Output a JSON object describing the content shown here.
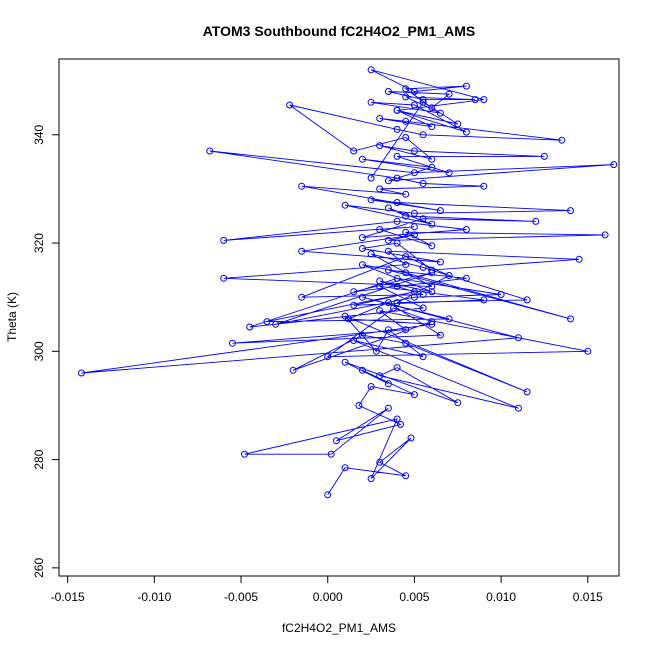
{
  "chart_data": {
    "type": "line",
    "title": "ATOM3 Southbound fC2H4O2_PM1_AMS",
    "xlabel": "fC2H4O2_PM1_AMS",
    "ylabel": "Theta (K)",
    "xlim": [
      -0.0155,
      0.0168
    ],
    "ylim": [
      258.5,
      354
    ],
    "x_ticks": [
      -0.015,
      -0.01,
      -0.005,
      0.0,
      0.005,
      0.01,
      0.015
    ],
    "x_tick_labels": [
      "-0.015",
      "-0.010",
      "-0.005",
      "0.000",
      "0.005",
      "0.010",
      "0.015"
    ],
    "y_ticks": [
      260,
      280,
      300,
      320,
      340
    ],
    "y_tick_labels": [
      "260",
      "280",
      "300",
      "320",
      "340"
    ],
    "grid": false,
    "legend": "none",
    "series_color": "#0000ff",
    "marker": "open-circle",
    "series": [
      {
        "x": [
          0.0,
          0.001,
          0.0045,
          0.003,
          0.0048,
          0.0025,
          0.004,
          -0.0048,
          0.0002,
          0.0035,
          0.0005,
          0.0042,
          0.0018,
          0.0025,
          0.005,
          0.002,
          0.0035,
          0.001,
          0.0075,
          0.004,
          0.003,
          0.011,
          0.0015,
          0.0055,
          0.0035,
          0.0028,
          0.001,
          0.0115,
          0.0045,
          0.002,
          -0.002,
          0.006,
          0.0038,
          0.0,
          0.015,
          0.003,
          0.0045,
          -0.0055,
          0.0065,
          0.0035,
          0.0012,
          0.006,
          -0.0142,
          0.011,
          0.002,
          0.007,
          -0.0035,
          0.005,
          0.0015,
          0.009,
          0.003,
          0.0055,
          -0.0045,
          0.004,
          0.01,
          0.005,
          -0.003,
          0.006,
          0.0015,
          0.004,
          0.008,
          0.0035,
          0.014,
          0.0045,
          0.002,
          0.006,
          0.003,
          0.0055,
          -0.0015,
          0.0045,
          0.007,
          0.004,
          0.0115,
          0.0055,
          0.0025,
          0.006,
          -0.006,
          0.0045,
          0.0035,
          0.0145,
          0.006,
          0.004,
          0.002,
          0.0065,
          -0.0015,
          0.005,
          0.0035,
          0.016,
          0.0045,
          0.006,
          0.003,
          0.005,
          -0.006,
          0.004,
          0.008,
          0.002,
          0.0055,
          0.012,
          0.0045,
          0.0035,
          0.006,
          0.001,
          0.005,
          0.014,
          0.004,
          0.0025,
          0.0065,
          -0.0015,
          0.0045,
          0.003,
          0.009,
          0.0055,
          0.004,
          -0.0068,
          0.005,
          0.0165,
          0.0035,
          0.006,
          0.002,
          0.007,
          0.004,
          0.0125,
          0.005,
          0.003,
          0.006,
          0.0045,
          0.0015,
          -0.0022,
          0.004,
          0.0055,
          0.0135,
          0.0045,
          0.003,
          0.006,
          0.004,
          0.008,
          0.005,
          0.0025,
          0.0065,
          0.0045,
          0.0085,
          0.0055,
          0.0035,
          0.007,
          0.006,
          0.0045,
          0.008,
          0.005,
          0.0025,
          0.009,
          0.004,
          0.0075,
          0.0055,
          0.0025
        ],
        "y": [
          273.5,
          278.5,
          277.0,
          279.5,
          284.0,
          276.5,
          287.5,
          281.0,
          281.0,
          289.5,
          283.5,
          286.5,
          290.0,
          293.5,
          292.0,
          296.5,
          294.0,
          298.0,
          290.5,
          297.0,
          295.5,
          289.5,
          302.0,
          299.0,
          304.0,
          300.0,
          306.5,
          292.5,
          301.5,
          303.0,
          296.5,
          305.5,
          308.0,
          299.0,
          300.0,
          307.5,
          304.0,
          301.5,
          303.0,
          309.0,
          306.0,
          305.0,
          296.0,
          302.5,
          310.0,
          306.0,
          305.5,
          311.0,
          308.5,
          309.5,
          312.0,
          308.0,
          304.5,
          313.5,
          310.5,
          310.0,
          305.0,
          314.5,
          311.0,
          312.0,
          313.5,
          315.0,
          306.0,
          314.5,
          316.0,
          311.0,
          313.0,
          310.5,
          310.0,
          317.5,
          314.0,
          309.0,
          309.5,
          315.5,
          318.0,
          312.0,
          313.5,
          316.0,
          318.5,
          317.0,
          315.0,
          320.0,
          319.0,
          316.5,
          318.5,
          321.5,
          320.5,
          321.5,
          322.0,
          319.5,
          322.5,
          323.0,
          320.5,
          324.0,
          322.5,
          321.0,
          324.5,
          324.0,
          325.0,
          326.5,
          323.5,
          327.0,
          325.5,
          326.0,
          327.5,
          328.0,
          326.0,
          330.5,
          329.0,
          330.0,
          330.5,
          331.0,
          332.0,
          337.0,
          333.0,
          334.5,
          331.5,
          334.0,
          335.5,
          333.0,
          336.0,
          336.0,
          337.0,
          338.0,
          335.5,
          339.5,
          337.0,
          345.5,
          341.0,
          340.0,
          339.0,
          342.5,
          343.0,
          341.5,
          344.5,
          340.5,
          345.5,
          346.0,
          344.0,
          347.0,
          346.5,
          346.5,
          348.0,
          347.5,
          345.0,
          348.5,
          349.0,
          348.0,
          352.0,
          346.5,
          344.5,
          342.0,
          346.0,
          332.0
        ]
      }
    ]
  }
}
